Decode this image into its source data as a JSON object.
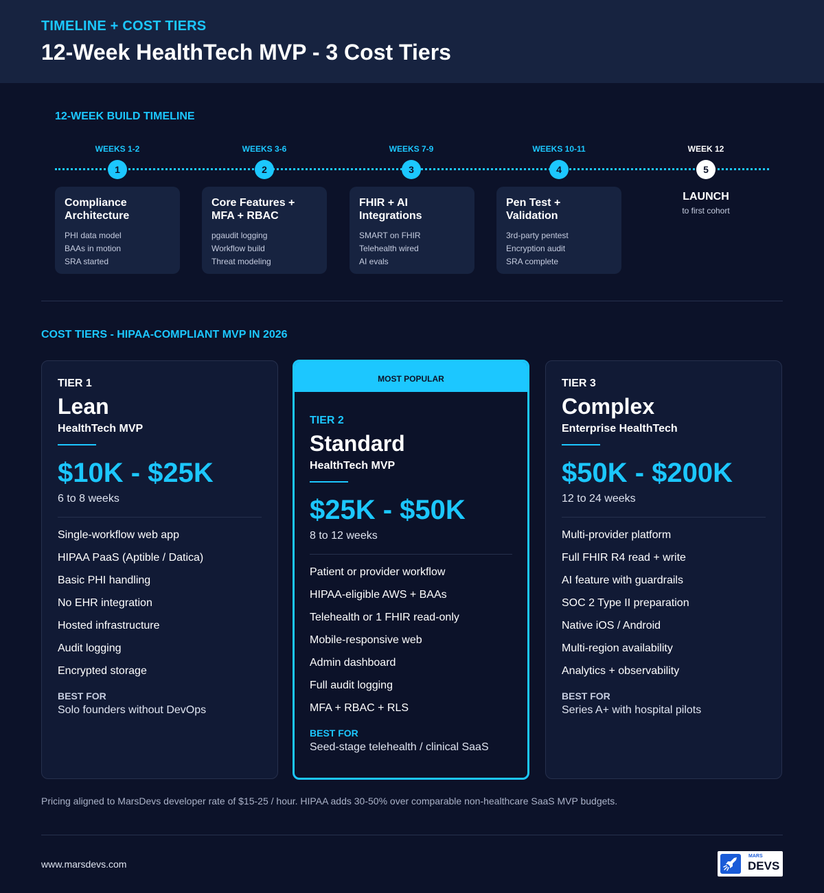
{
  "header": {
    "eyebrow": "TIMELINE + COST TIERS",
    "title": "12-Week HealthTech MVP - 3 Cost Tiers"
  },
  "timeline": {
    "label": "12-WEEK BUILD TIMELINE",
    "milestones": [
      {
        "weeks": "WEEKS 1-2",
        "number": "1",
        "title": "Compliance Architecture",
        "items": [
          "PHI data model",
          "BAAs in motion",
          "SRA started"
        ]
      },
      {
        "weeks": "WEEKS 3-6",
        "number": "2",
        "title": "Core Features + MFA + RBAC",
        "items": [
          "pgaudit logging",
          "Workflow build",
          "Threat modeling"
        ]
      },
      {
        "weeks": "WEEKS 7-9",
        "number": "3",
        "title": "FHIR + AI Integrations",
        "items": [
          "SMART on FHIR",
          "Telehealth wired",
          "AI evals"
        ]
      },
      {
        "weeks": "WEEKS 10-11",
        "number": "4",
        "title": "Pen Test + Validation",
        "items": [
          "3rd-party pentest",
          "Encryption audit",
          "SRA complete"
        ]
      },
      {
        "weeks": "WEEK 12",
        "number": "5",
        "title": "LAUNCH",
        "subtitle": "to first cohort"
      }
    ]
  },
  "cost": {
    "label": "COST TIERS - HIPAA-COMPLIANT MVP IN 2026",
    "tiers": [
      {
        "tier": "TIER 1",
        "name": "Lean",
        "subtitle": "HealthTech MVP",
        "price": "$10K - $25K",
        "duration": "6 to 8 weeks",
        "features": [
          "Single-workflow web app",
          "HIPAA PaaS (Aptible / Datica)",
          "Basic PHI handling",
          "No EHR integration",
          "Hosted infrastructure",
          "Audit logging",
          "Encrypted storage"
        ],
        "best_for_label": "BEST FOR",
        "best_for": "Solo founders without DevOps"
      },
      {
        "badge": "MOST POPULAR",
        "tier": "TIER 2",
        "name": "Standard",
        "subtitle": "HealthTech MVP",
        "price": "$25K - $50K",
        "duration": "8 to 12 weeks",
        "features": [
          "Patient or provider workflow",
          "HIPAA-eligible AWS + BAAs",
          "Telehealth or 1 FHIR read-only",
          "Mobile-responsive web",
          "Admin dashboard",
          "Full audit logging",
          "MFA + RBAC + RLS"
        ],
        "best_for_label": "BEST FOR",
        "best_for": "Seed-stage telehealth / clinical SaaS"
      },
      {
        "tier": "TIER 3",
        "name": "Complex",
        "subtitle": "Enterprise HealthTech",
        "price": "$50K - $200K",
        "duration": "12 to 24 weeks",
        "features": [
          "Multi-provider platform",
          "Full FHIR R4 read + write",
          "AI feature with guardrails",
          "SOC 2 Type II preparation",
          "Native iOS / Android",
          "Multi-region availability",
          "Analytics + observability"
        ],
        "best_for_label": "BEST FOR",
        "best_for": "Series A+ with hospital pilots"
      }
    ]
  },
  "footnote": "Pricing aligned to MarsDevs developer rate of $15-25 / hour. HIPAA adds 30-50% over comparable non-healthcare SaaS MVP budgets.",
  "footer": {
    "url": "www.marsdevs.com",
    "logo_small": "MARS",
    "logo_text": "DEVS"
  },
  "colors": {
    "background": "#0c1229",
    "header": "#172340",
    "accent": "#1cc7ff",
    "card": "#172340"
  }
}
